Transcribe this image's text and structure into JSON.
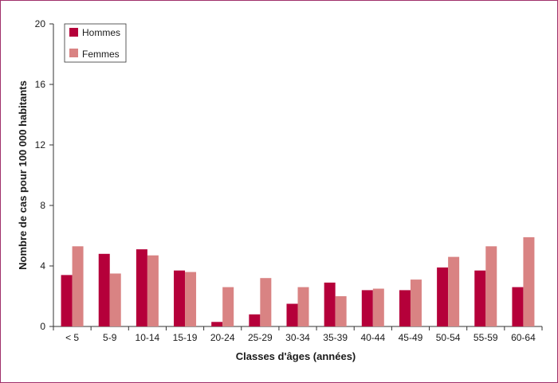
{
  "chart_data": {
    "type": "bar",
    "xlabel": "Classes d'âges (années)",
    "ylabel": "Nombre de cas pour 100 000 habitants",
    "ylim": [
      0,
      20
    ],
    "yticks": [
      0,
      4,
      8,
      12,
      16,
      20
    ],
    "grid": false,
    "legend_position": "top-left",
    "categories": [
      "< 5",
      "5-9",
      "10-14",
      "15-19",
      "20-24",
      "25-29",
      "30-34",
      "35-39",
      "40-44",
      "45-49",
      "50-54",
      "55-59",
      "60-64"
    ],
    "series": [
      {
        "name": "Hommes",
        "color": "#b5003a",
        "values": [
          3.4,
          4.8,
          5.1,
          3.7,
          0.3,
          0.8,
          1.5,
          2.9,
          2.4,
          2.4,
          3.9,
          3.7,
          2.6
        ]
      },
      {
        "name": "Femmes",
        "color": "#d98383",
        "values": [
          5.3,
          3.5,
          4.7,
          3.6,
          2.6,
          3.2,
          2.6,
          2.0,
          2.5,
          3.1,
          4.6,
          5.3,
          5.9
        ]
      }
    ]
  }
}
